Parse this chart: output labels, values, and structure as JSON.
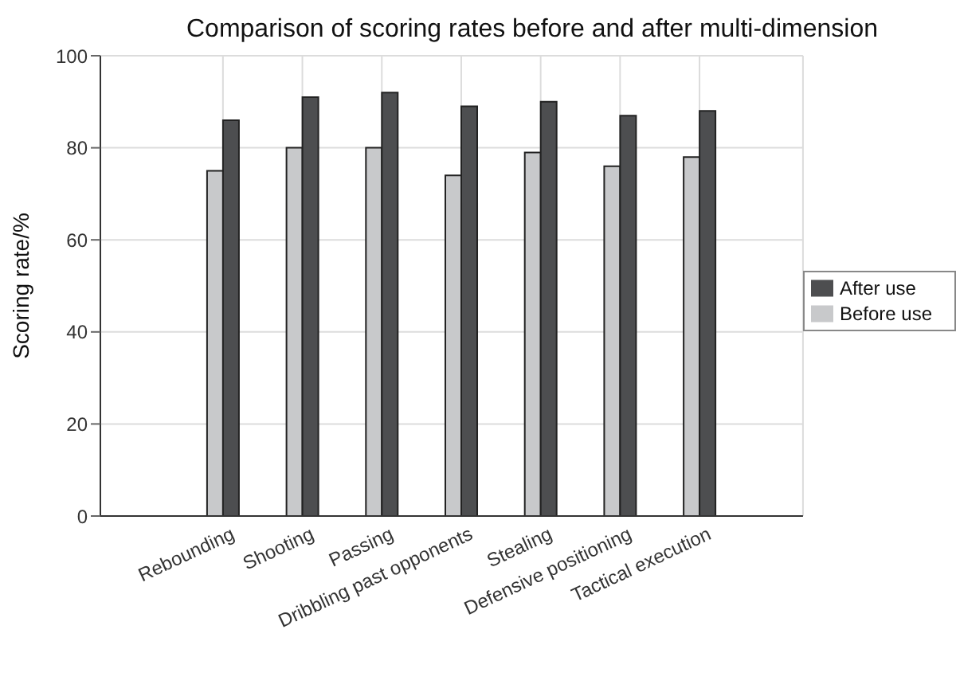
{
  "chart_data": {
    "type": "bar",
    "title": "Comparison of scoring rates before and after multi-dimension",
    "ylabel": "Scoring rate/%",
    "categories": [
      "Rebounding",
      "Shooting",
      "Passing",
      "Dribbling past opponents",
      "Stealing",
      "Defensive positioning",
      "Tactical execution"
    ],
    "series": [
      {
        "name": "Before use",
        "color": "#c8c9cb",
        "values": [
          75,
          80,
          80,
          74,
          79,
          76,
          78
        ]
      },
      {
        "name": "After use",
        "color": "#4d4e50",
        "values": [
          86,
          91,
          92,
          89,
          90,
          87,
          88
        ]
      }
    ],
    "ylim": [
      0,
      100
    ],
    "yticks": [
      0,
      20,
      40,
      60,
      80,
      100
    ],
    "grid": true,
    "legend": "right"
  }
}
